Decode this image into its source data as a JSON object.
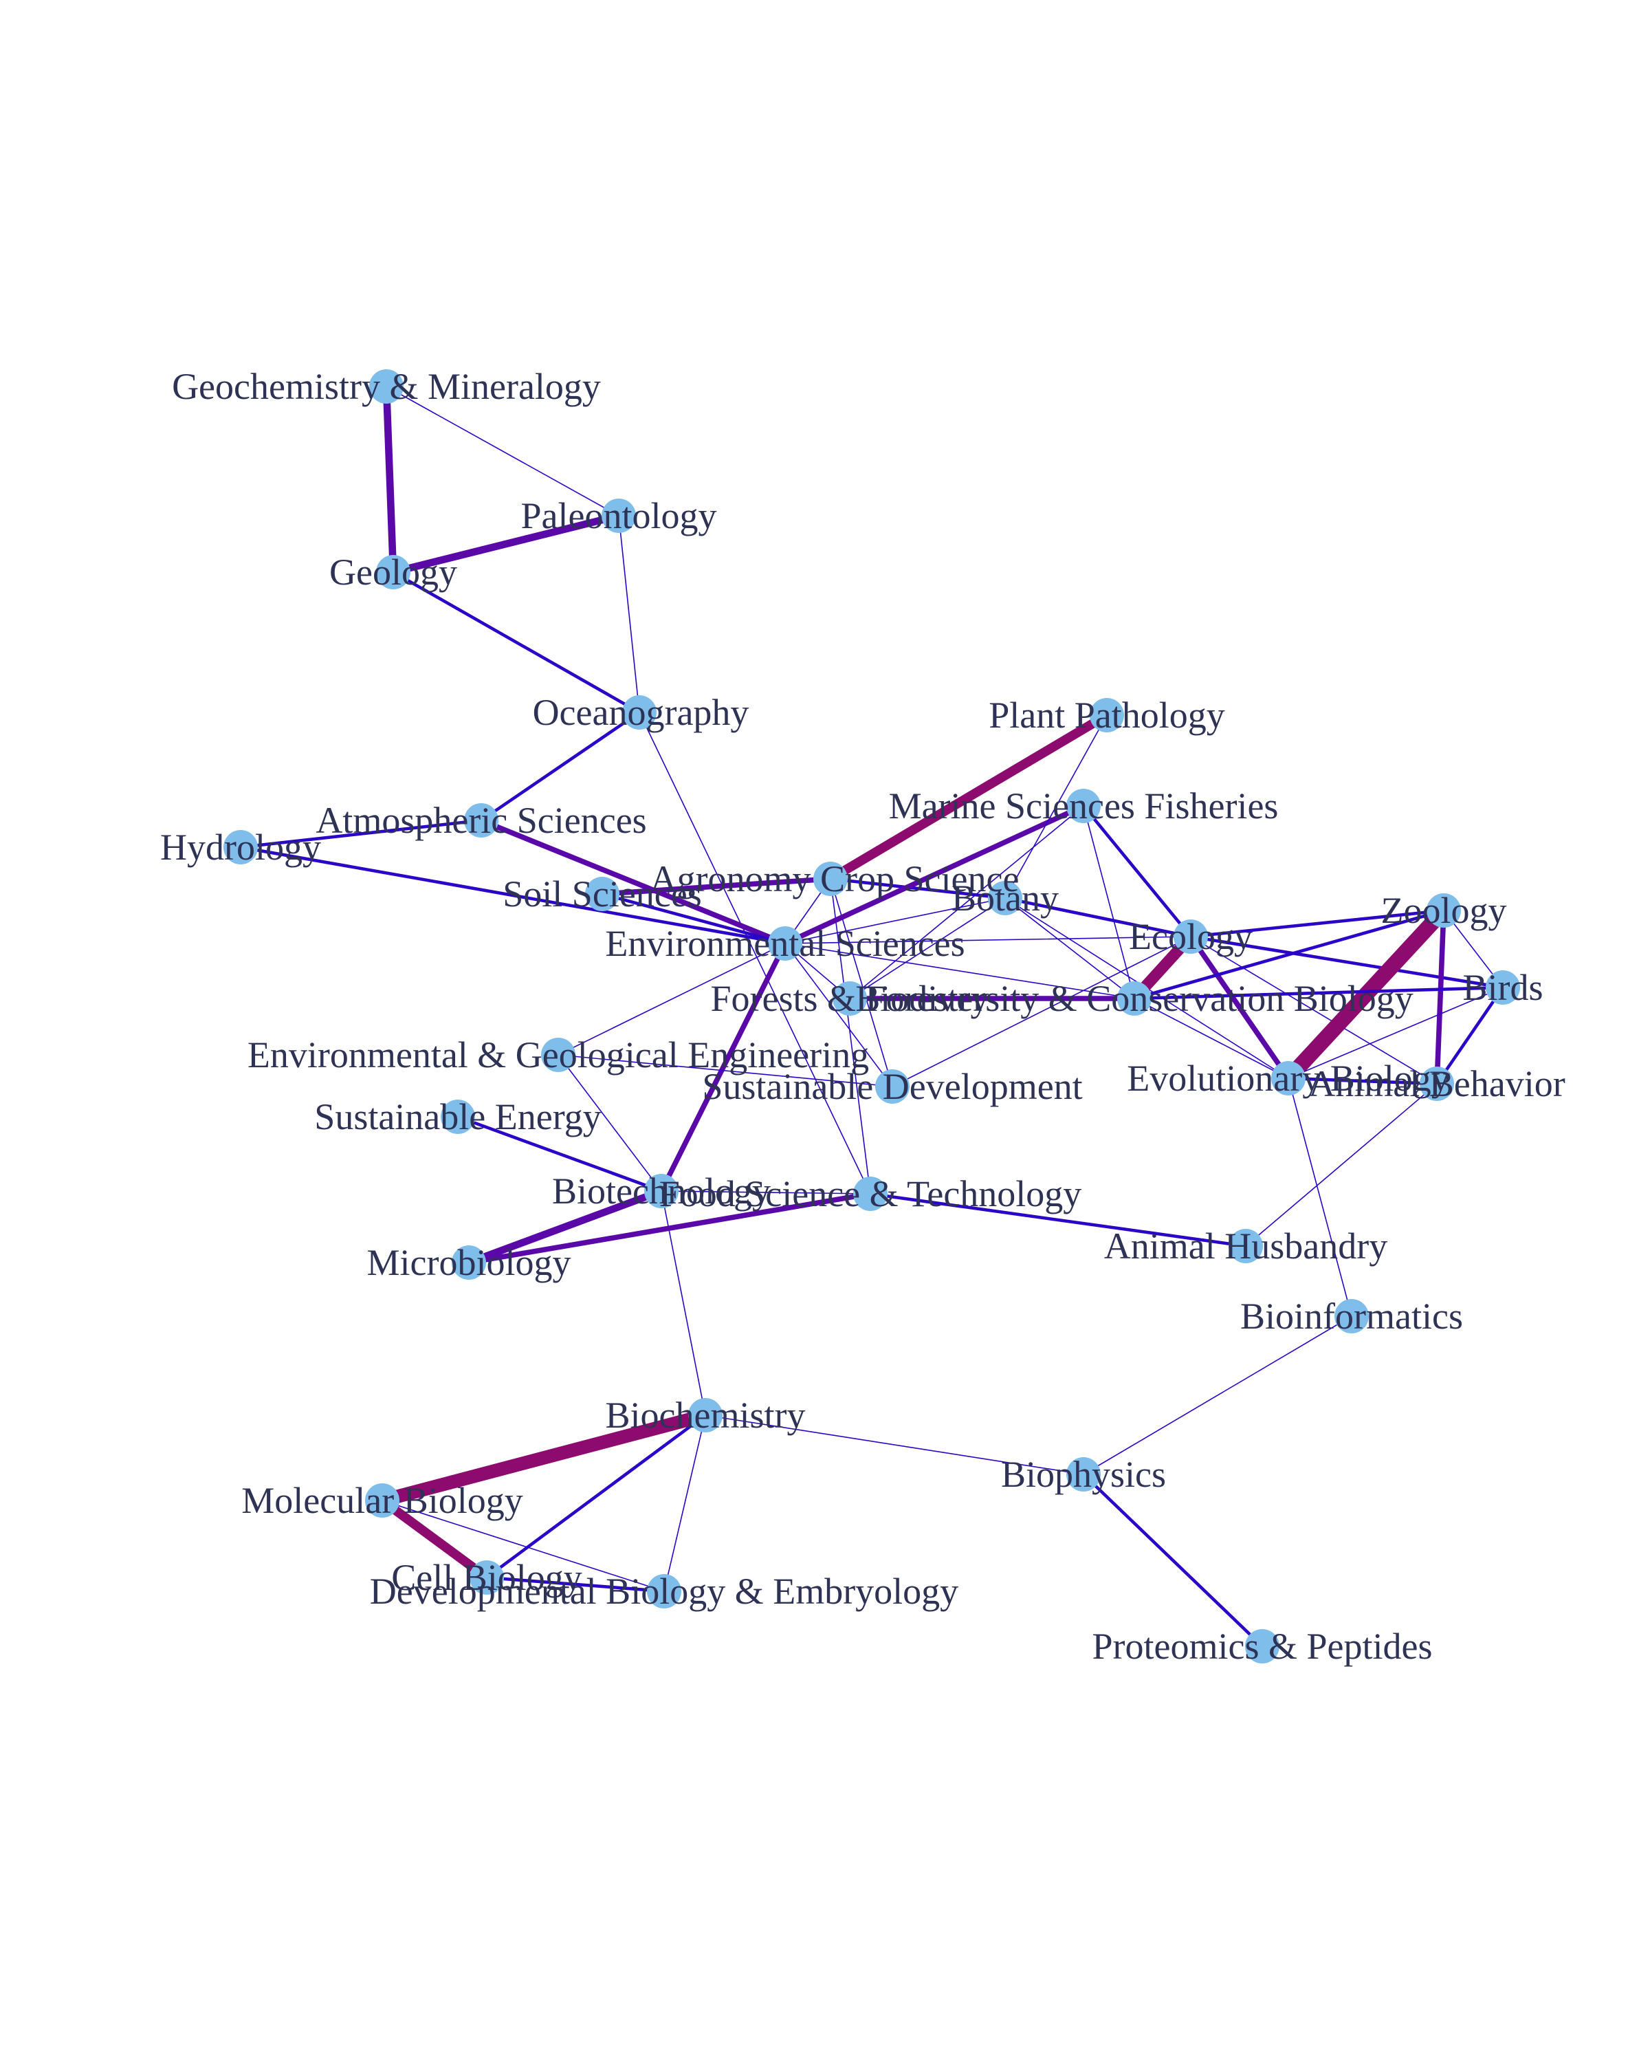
{
  "colors": {
    "background": "#ffffff",
    "node_fill": "#7fbdea",
    "label": "#2e3356",
    "edge_light": "#2b06c8",
    "edge_medium": "#5a08a8",
    "edge_heavy": "#8d0a6e"
  },
  "graph": {
    "nodes": [
      {
        "id": "geochem",
        "label": "Geochemistry & Mineralogy"
      },
      {
        "id": "paleo",
        "label": "Paleontology"
      },
      {
        "id": "geology",
        "label": "Geology"
      },
      {
        "id": "ocean",
        "label": "Oceanography"
      },
      {
        "id": "plantpath",
        "label": "Plant Pathology"
      },
      {
        "id": "marine",
        "label": "Marine Sciences Fisheries"
      },
      {
        "id": "atmos",
        "label": "Atmospheric Sciences"
      },
      {
        "id": "hydro",
        "label": "Hydrology"
      },
      {
        "id": "agro",
        "label": "Agronomy Crop Science"
      },
      {
        "id": "soil",
        "label": "Soil Sciences"
      },
      {
        "id": "botany",
        "label": "Botany"
      },
      {
        "id": "envsci",
        "label": "Environmental Sciences"
      },
      {
        "id": "ecology",
        "label": "Ecology"
      },
      {
        "id": "zoology",
        "label": "Zoology"
      },
      {
        "id": "forests",
        "label": "Forests & Forestry"
      },
      {
        "id": "biodiv",
        "label": "Biodiversity & Conservation Biology"
      },
      {
        "id": "birds",
        "label": "Birds"
      },
      {
        "id": "envgeo",
        "label": "Environmental & Geological Engineering"
      },
      {
        "id": "sustdev",
        "label": "Sustainable Development"
      },
      {
        "id": "evolbio",
        "label": "Evolutionary Biology"
      },
      {
        "id": "animbeh",
        "label": "Animal Behavior"
      },
      {
        "id": "susteng",
        "label": "Sustainable Energy"
      },
      {
        "id": "biotech",
        "label": "Biotechnology"
      },
      {
        "id": "foodsci",
        "label": "Food Science & Technology"
      },
      {
        "id": "animhus",
        "label": "Animal Husbandry"
      },
      {
        "id": "microbio",
        "label": "Microbiology"
      },
      {
        "id": "bioinf",
        "label": "Bioinformatics"
      },
      {
        "id": "biochem",
        "label": "Biochemistry"
      },
      {
        "id": "biophys",
        "label": "Biophysics"
      },
      {
        "id": "molbio",
        "label": "Molecular Biology"
      },
      {
        "id": "cellbio",
        "label": "Cell Biology"
      },
      {
        "id": "devbio",
        "label": "Developmental Biology & Embryology"
      },
      {
        "id": "proteo",
        "label": "Proteomics & Peptides"
      }
    ],
    "edges": [
      {
        "source": "geochem",
        "target": "geology",
        "weight": 4
      },
      {
        "source": "geochem",
        "target": "paleo",
        "weight": 1
      },
      {
        "source": "geology",
        "target": "paleo",
        "weight": 4
      },
      {
        "source": "geology",
        "target": "ocean",
        "weight": 2
      },
      {
        "source": "paleo",
        "target": "ocean",
        "weight": 1
      },
      {
        "source": "ocean",
        "target": "atmos",
        "weight": 2
      },
      {
        "source": "ocean",
        "target": "foodsci",
        "weight": 1
      },
      {
        "source": "atmos",
        "target": "hydro",
        "weight": 2
      },
      {
        "source": "atmos",
        "target": "envsci",
        "weight": 3
      },
      {
        "source": "hydro",
        "target": "envsci",
        "weight": 2
      },
      {
        "source": "soil",
        "target": "agro",
        "weight": 3
      },
      {
        "source": "soil",
        "target": "envsci",
        "weight": 2
      },
      {
        "source": "agro",
        "target": "plantpath",
        "weight": 5
      },
      {
        "source": "agro",
        "target": "botany",
        "weight": 2
      },
      {
        "source": "agro",
        "target": "sustdev",
        "weight": 1
      },
      {
        "source": "agro",
        "target": "envsci",
        "weight": 1
      },
      {
        "source": "agro",
        "target": "foodsci",
        "weight": 1
      },
      {
        "source": "envsci",
        "target": "marine",
        "weight": 3
      },
      {
        "source": "envsci",
        "target": "botany",
        "weight": 1
      },
      {
        "source": "envsci",
        "target": "ecology",
        "weight": 1
      },
      {
        "source": "envsci",
        "target": "envgeo",
        "weight": 1
      },
      {
        "source": "envsci",
        "target": "biotech",
        "weight": 3
      },
      {
        "source": "envsci",
        "target": "sustdev",
        "weight": 1
      },
      {
        "source": "envsci",
        "target": "biodiv",
        "weight": 1
      },
      {
        "source": "envsci",
        "target": "forests",
        "weight": 1
      },
      {
        "source": "plantpath",
        "target": "botany",
        "weight": 1
      },
      {
        "source": "marine",
        "target": "ecology",
        "weight": 2
      },
      {
        "source": "marine",
        "target": "forests",
        "weight": 1
      },
      {
        "source": "marine",
        "target": "biodiv",
        "weight": 1
      },
      {
        "source": "botany",
        "target": "ecology",
        "weight": 2
      },
      {
        "source": "botany",
        "target": "forests",
        "weight": 1
      },
      {
        "source": "botany",
        "target": "biodiv",
        "weight": 1
      },
      {
        "source": "botany",
        "target": "evolbio",
        "weight": 1
      },
      {
        "source": "ecology",
        "target": "biodiv",
        "weight": 6
      },
      {
        "source": "ecology",
        "target": "zoology",
        "weight": 2
      },
      {
        "source": "ecology",
        "target": "evolbio",
        "weight": 3
      },
      {
        "source": "ecology",
        "target": "birds",
        "weight": 2
      },
      {
        "source": "ecology",
        "target": "animbeh",
        "weight": 1
      },
      {
        "source": "ecology",
        "target": "sustdev",
        "weight": 1
      },
      {
        "source": "zoology",
        "target": "evolbio",
        "weight": 8
      },
      {
        "source": "zoology",
        "target": "birds",
        "weight": 1
      },
      {
        "source": "zoology",
        "target": "animbeh",
        "weight": 3
      },
      {
        "source": "zoology",
        "target": "biodiv",
        "weight": 2
      },
      {
        "source": "biodiv",
        "target": "forests",
        "weight": 3
      },
      {
        "source": "biodiv",
        "target": "birds",
        "weight": 2
      },
      {
        "source": "biodiv",
        "target": "evolbio",
        "weight": 1
      },
      {
        "source": "birds",
        "target": "animbeh",
        "weight": 2
      },
      {
        "source": "birds",
        "target": "evolbio",
        "weight": 1
      },
      {
        "source": "evolbio",
        "target": "animbeh",
        "weight": 2
      },
      {
        "source": "evolbio",
        "target": "bioinf",
        "weight": 1
      },
      {
        "source": "animbeh",
        "target": "animhus",
        "weight": 1
      },
      {
        "source": "envgeo",
        "target": "sustdev",
        "weight": 1
      },
      {
        "source": "envgeo",
        "target": "biotech",
        "weight": 1
      },
      {
        "source": "susteng",
        "target": "biotech",
        "weight": 2
      },
      {
        "source": "biotech",
        "target": "microbio",
        "weight": 4
      },
      {
        "source": "biotech",
        "target": "foodsci",
        "weight": 1
      },
      {
        "source": "biotech",
        "target": "biochem",
        "weight": 1
      },
      {
        "source": "microbio",
        "target": "foodsci",
        "weight": 3
      },
      {
        "source": "foodsci",
        "target": "animhus",
        "weight": 2
      },
      {
        "source": "bioinf",
        "target": "biophys",
        "weight": 1
      },
      {
        "source": "biochem",
        "target": "molbio",
        "weight": 7
      },
      {
        "source": "biochem",
        "target": "cellbio",
        "weight": 2
      },
      {
        "source": "biochem",
        "target": "devbio",
        "weight": 1
      },
      {
        "source": "biochem",
        "target": "biophys",
        "weight": 1
      },
      {
        "source": "molbio",
        "target": "cellbio",
        "weight": 5
      },
      {
        "source": "molbio",
        "target": "devbio",
        "weight": 1
      },
      {
        "source": "cellbio",
        "target": "devbio",
        "weight": 2
      },
      {
        "source": "biophys",
        "target": "proteo",
        "weight": 2
      }
    ]
  }
}
